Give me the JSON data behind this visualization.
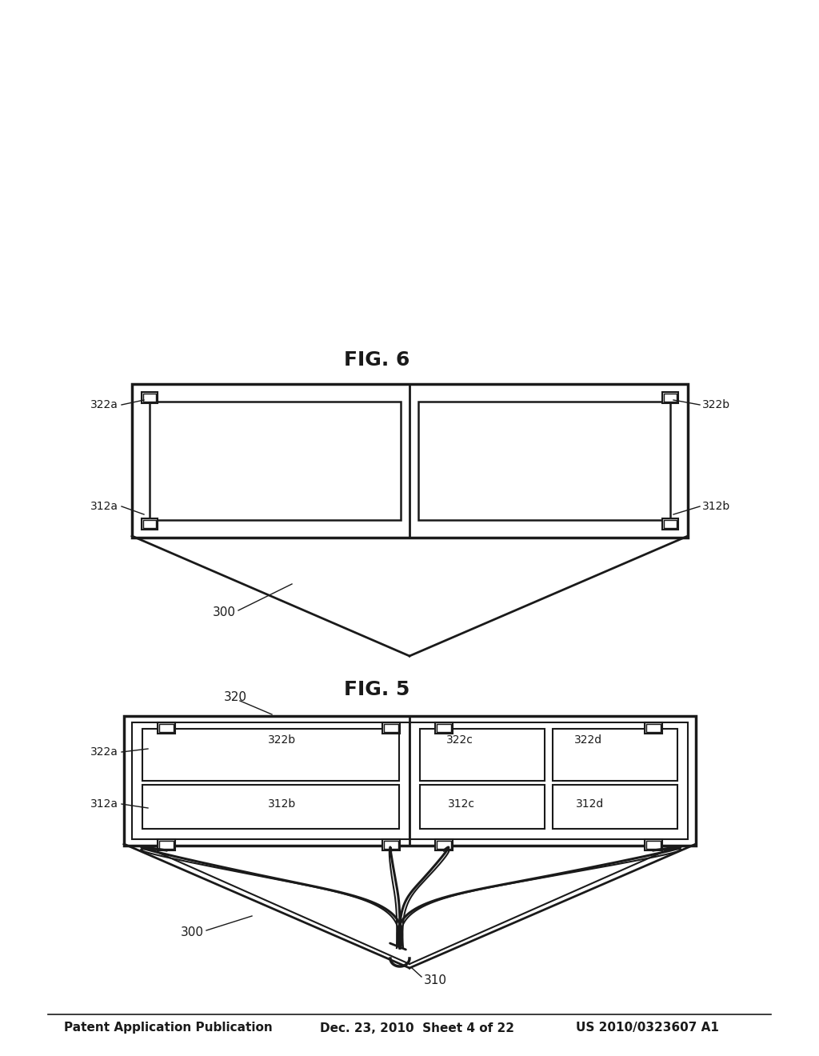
{
  "background_color": "#ffffff",
  "header_left": "Patent Application Publication",
  "header_center": "Dec. 23, 2010  Sheet 4 of 22",
  "header_right": "US 2010/0323607 A1",
  "fig5_label": "FIG. 5",
  "fig6_label": "FIG. 6",
  "line_color": "#1a1a1a",
  "text_color": "#1a1a1a"
}
